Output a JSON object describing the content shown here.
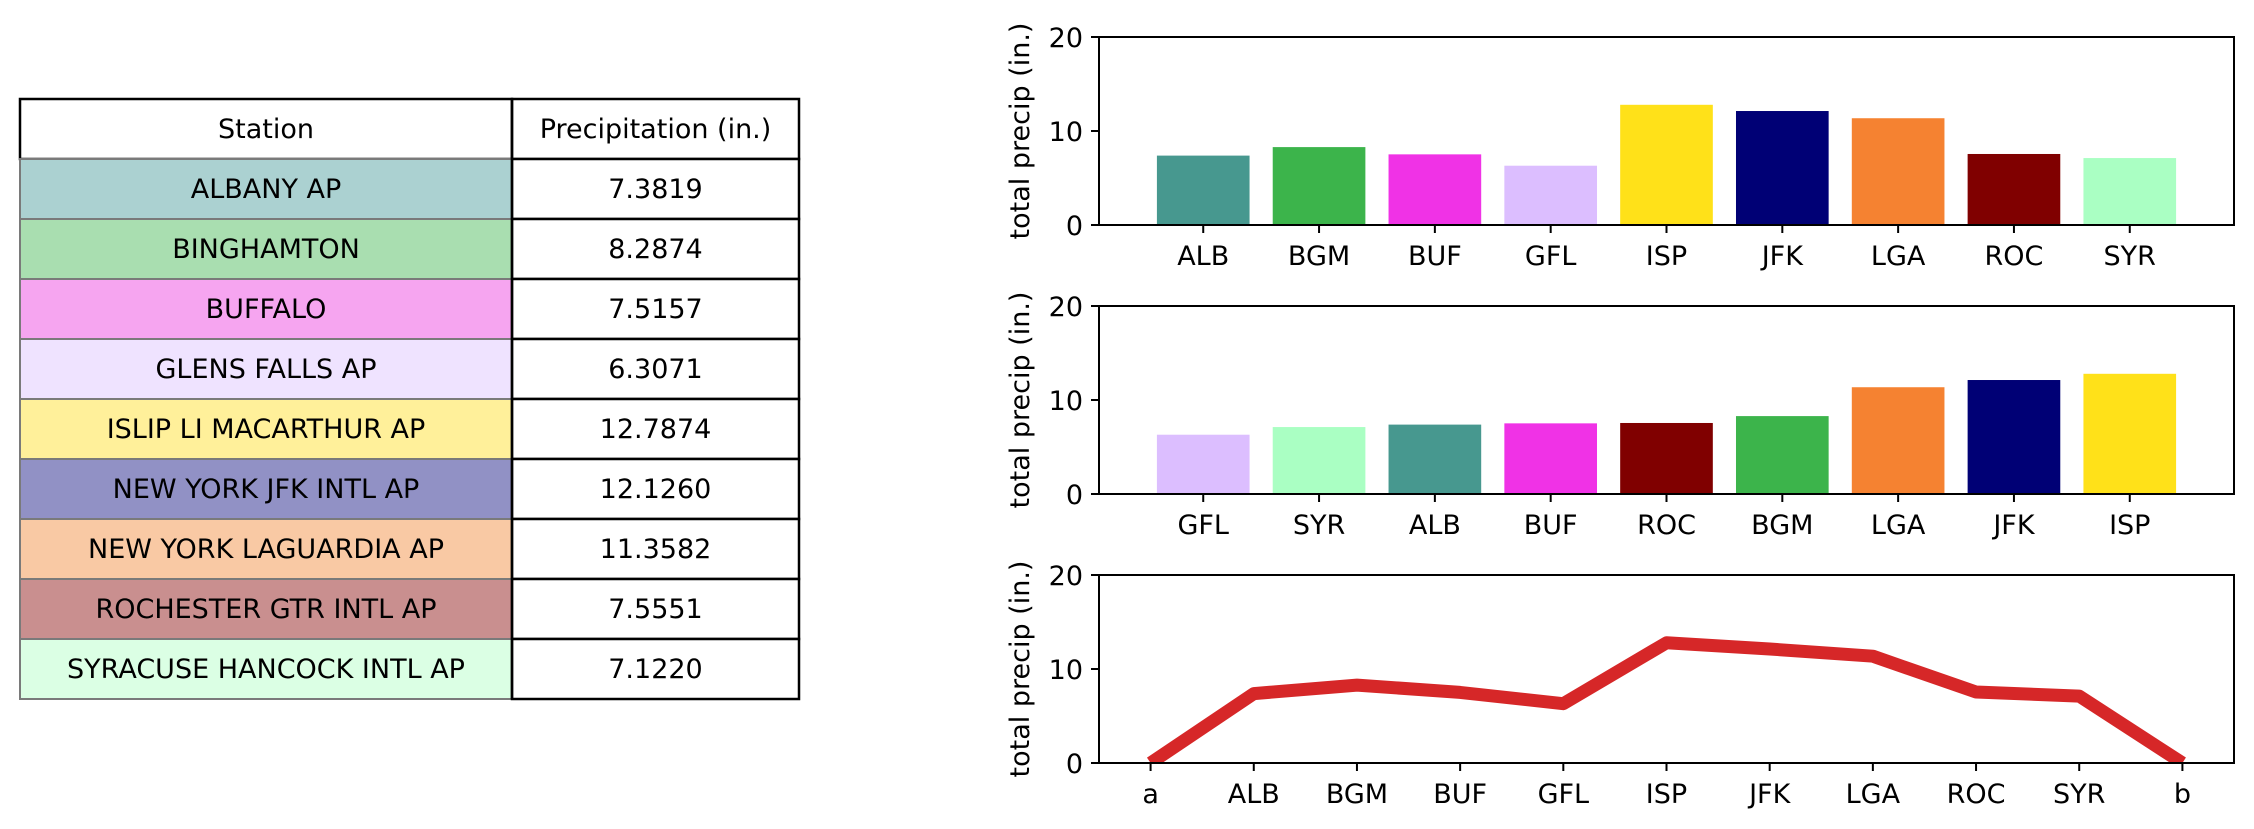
{
  "table": {
    "headers": [
      "Station",
      "Precipitation (in.)"
    ],
    "rows": [
      {
        "station": "ALBANY AP",
        "precip": "7.3819",
        "color": "#ABD1D1"
      },
      {
        "station": "BINGHAMTON",
        "precip": "8.2874",
        "color": "#A9DEB0"
      },
      {
        "station": "BUFFALO",
        "precip": "7.5157",
        "color": "#F6A5F0"
      },
      {
        "station": "GLENS FALLS AP",
        "precip": "6.3071",
        "color": "#EFE3FF"
      },
      {
        "station": "ISLIP LI MACARTHUR AP",
        "precip": "12.7874",
        "color": "#FFF09A"
      },
      {
        "station": "NEW YORK JFK INTL AP",
        "precip": "12.1260",
        "color": "#9191C5"
      },
      {
        "station": "NEW YORK LAGUARDIA AP",
        "precip": "11.3582",
        "color": "#F9C9A4"
      },
      {
        "station": "ROCHESTER GTR INTL AP",
        "precip": "7.5551",
        "color": "#C98F8F"
      },
      {
        "station": "SYRACUSE HANCOCK INTL AP",
        "precip": "7.1220",
        "color": "#DBFFE4"
      }
    ]
  },
  "chart_data": [
    {
      "type": "bar",
      "categories": [
        "ALB",
        "BGM",
        "BUF",
        "GFL",
        "ISP",
        "JFK",
        "LGA",
        "ROC",
        "SYR"
      ],
      "values": [
        7.3819,
        8.2874,
        7.5157,
        6.3071,
        12.7874,
        12.126,
        11.3582,
        7.5551,
        7.122
      ],
      "colors": [
        "#47988F",
        "#3CB44B",
        "#F032E6",
        "#DCBEFF",
        "#FFE119",
        "#000075",
        "#F58231",
        "#800000",
        "#AAFFC3"
      ],
      "ylabel": "total precip (in.)",
      "ylim": [
        0,
        20
      ],
      "yticks": [
        "0",
        "10",
        "20"
      ],
      "grid": false
    },
    {
      "type": "bar",
      "categories": [
        "GFL",
        "SYR",
        "ALB",
        "BUF",
        "ROC",
        "BGM",
        "LGA",
        "JFK",
        "ISP"
      ],
      "values": [
        6.3071,
        7.122,
        7.3819,
        7.5157,
        7.5551,
        8.2874,
        11.3582,
        12.126,
        12.7874
      ],
      "colors": [
        "#DCBEFF",
        "#AAFFC3",
        "#47988F",
        "#F032E6",
        "#800000",
        "#3CB44B",
        "#F58231",
        "#000075",
        "#FFE119"
      ],
      "ylabel": "total precip (in.)",
      "ylim": [
        0,
        20
      ],
      "yticks": [
        "0",
        "10",
        "20"
      ],
      "grid": false
    },
    {
      "type": "line",
      "categories": [
        "a",
        "ALB",
        "BGM",
        "BUF",
        "GFL",
        "ISP",
        "JFK",
        "LGA",
        "ROC",
        "SYR",
        "b"
      ],
      "values": [
        0,
        7.3819,
        8.2874,
        7.5157,
        6.3071,
        12.7874,
        12.126,
        11.3582,
        7.5551,
        7.122,
        0
      ],
      "color": "#D62728",
      "ylabel": "total precip (in.)",
      "ylim": [
        0,
        20
      ],
      "yticks": [
        "0",
        "10",
        "20"
      ],
      "grid": false
    }
  ]
}
